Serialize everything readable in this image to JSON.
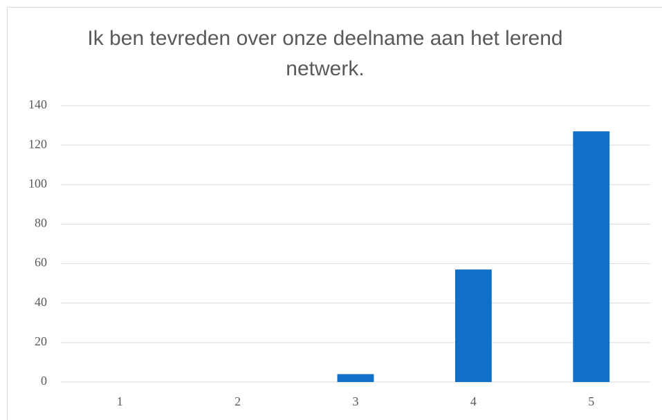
{
  "chart_data": {
    "type": "bar",
    "title": "Ik ben tevreden over onze deelname aan het lerend netwerk.",
    "categories": [
      "1",
      "2",
      "3",
      "4",
      "5"
    ],
    "values": [
      0,
      0,
      4,
      57,
      127
    ],
    "color": "#1070c8",
    "ylim": [
      0,
      140
    ],
    "yticks": [
      0,
      20,
      40,
      60,
      80,
      100,
      120,
      140
    ],
    "grid": true
  }
}
